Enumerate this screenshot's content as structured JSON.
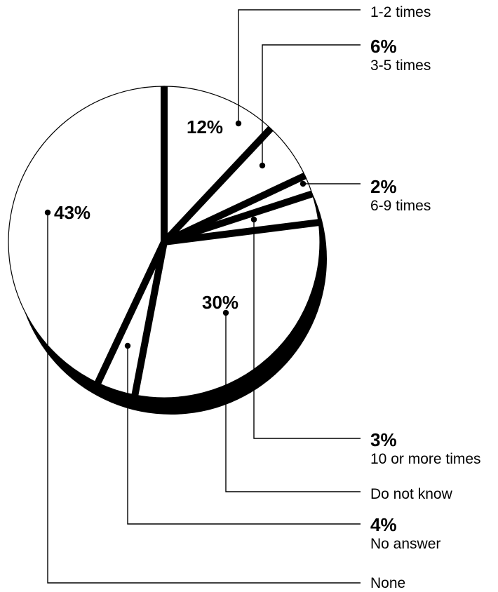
{
  "chart_data": {
    "type": "pie",
    "title": "",
    "slices": [
      {
        "label": "1-2 times",
        "value": 12,
        "value_label": "12%"
      },
      {
        "label": "3-5 times",
        "value": 6,
        "value_label": "6%"
      },
      {
        "label": "6-9 times",
        "value": 2,
        "value_label": "2%"
      },
      {
        "label": "10 or more times",
        "value": 3,
        "value_label": "3%"
      },
      {
        "label": "Do not know",
        "value": 30,
        "value_label": "30%"
      },
      {
        "label": "No answer",
        "value": 4,
        "value_label": "4%"
      },
      {
        "label": "None",
        "value": 43,
        "value_label": "43%"
      }
    ],
    "legend": "callout labels with leader lines on the right"
  }
}
